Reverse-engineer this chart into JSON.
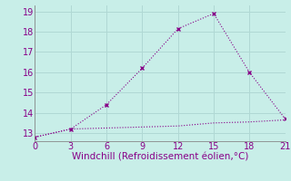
{
  "line1_x": [
    0,
    3,
    6,
    9,
    12,
    15,
    18,
    21
  ],
  "line1_y": [
    12.8,
    13.2,
    14.4,
    16.2,
    18.15,
    18.9,
    16.0,
    13.7
  ],
  "line2_x": [
    0,
    3,
    6,
    9,
    12,
    15,
    18,
    21
  ],
  "line2_y": [
    12.8,
    13.2,
    13.25,
    13.3,
    13.35,
    13.5,
    13.55,
    13.65
  ],
  "line_color": "#880088",
  "bg_color": "#c8eee8",
  "grid_color": "#b0d8d4",
  "xlabel": "Windchill (Refroidissement éolien,°C)",
  "xlabel_color": "#880088",
  "xticks": [
    0,
    3,
    6,
    9,
    12,
    15,
    18,
    21
  ],
  "yticks": [
    13,
    14,
    15,
    16,
    17,
    18,
    19
  ],
  "xlim": [
    0,
    21
  ],
  "ylim": [
    12.6,
    19.3
  ],
  "tick_color": "#880088",
  "spine_color": "#888888",
  "xlabel_fontsize": 7.5,
  "tick_fontsize": 7
}
